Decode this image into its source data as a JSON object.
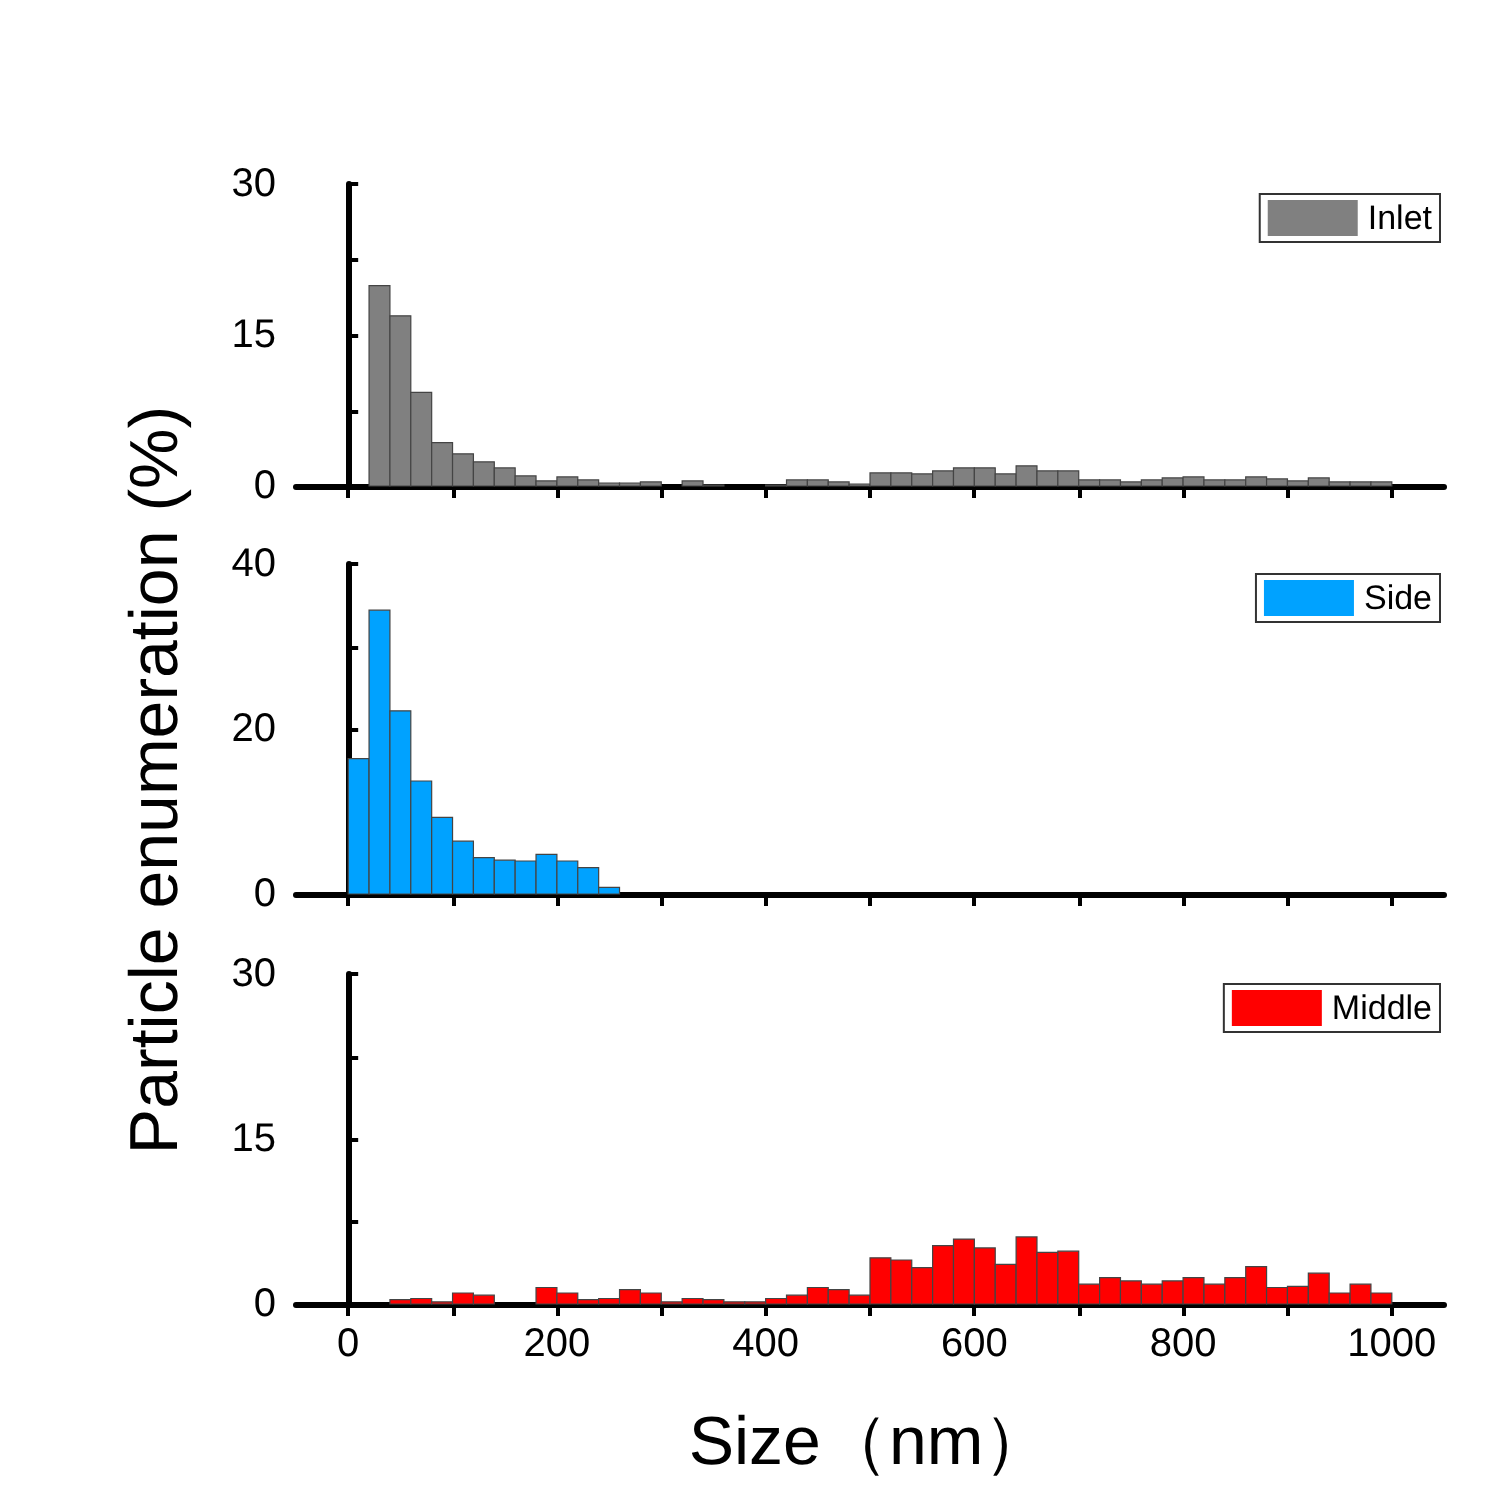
{
  "chart_data": [
    {
      "type": "histogram",
      "bins": [
        0,
        20,
        40,
        60,
        80,
        100,
        120,
        140,
        160,
        180,
        200,
        220,
        240,
        260,
        280,
        300,
        320,
        340,
        360,
        380,
        400,
        420,
        440,
        460,
        480,
        500,
        520,
        540,
        560,
        580,
        600,
        620,
        640,
        660,
        680,
        700,
        720,
        740,
        760,
        780,
        800,
        820,
        840,
        860,
        880,
        900,
        920,
        940,
        960,
        980,
        1000
      ],
      "series": [
        {
          "name": "Inlet",
          "color": "#808080",
          "values": [
            0,
            19.9,
            16.9,
            9.3,
            4.3,
            3.2,
            2.4,
            1.8,
            1.0,
            0.5,
            0.9,
            0.6,
            0.3,
            0.3,
            0.4,
            0,
            0.5,
            0.1,
            0,
            0,
            0.1,
            0.6,
            0.6,
            0.4,
            0.2,
            1.3,
            1.3,
            1.2,
            1.5,
            1.8,
            1.8,
            1.2,
            2.0,
            1.5,
            1.5,
            0.6,
            0.6,
            0.4,
            0.6,
            0.8,
            0.9,
            0.6,
            0.6,
            0.9,
            0.7,
            0.5,
            0.8,
            0.4,
            0.4,
            0.4
          ]
        }
      ],
      "xlim": [
        -50,
        1050
      ],
      "xticks": [
        0,
        {
          "value": 100,
          "label": null
        },
        {
          "value": 200,
          "label": null
        },
        {
          "value": 300,
          "label": null
        },
        {
          "value": 400,
          "label": null
        },
        {
          "value": 500,
          "label": null
        },
        {
          "value": 600,
          "label": null
        },
        {
          "value": 700,
          "label": null
        },
        {
          "value": 800,
          "label": null
        },
        {
          "value": 900,
          "label": null
        },
        {
          "value": 1000,
          "label": null
        }
      ],
      "ylim": [
        0,
        30
      ],
      "yticks": [
        0,
        {
          "value": 7.5,
          "label": null
        },
        15,
        {
          "value": 22.5,
          "label": null
        },
        30
      ],
      "tick_labels": "y",
      "legend": "top right"
    },
    {
      "type": "histogram",
      "bins": [
        0,
        20,
        40,
        60,
        80,
        100,
        120,
        140,
        160,
        180,
        200,
        220,
        240,
        260,
        280,
        300,
        320,
        340,
        360,
        380,
        400,
        420,
        440,
        460,
        480,
        500,
        520,
        540,
        560,
        580,
        600,
        620,
        640,
        660,
        680,
        700,
        720,
        740,
        760,
        780,
        800,
        820,
        840,
        860,
        880,
        900,
        920,
        940,
        960,
        980,
        1000
      ],
      "series": [
        {
          "name": "Side",
          "color": "#00a2ff",
          "values": [
            16.4,
            34.4,
            22.2,
            13.7,
            9.3,
            6.4,
            4.4,
            4.1,
            4.0,
            4.8,
            4.0,
            3.2,
            0.8,
            0,
            0,
            0,
            0,
            0,
            0,
            0,
            0,
            0,
            0,
            0,
            0,
            0,
            0,
            0,
            0,
            0,
            0,
            0,
            0,
            0,
            0,
            0,
            0,
            0,
            0,
            0,
            0,
            0,
            0,
            0,
            0,
            0,
            0,
            0,
            0,
            0
          ]
        }
      ],
      "xlim": [
        -50,
        1050
      ],
      "xticks": [
        0,
        {
          "value": 100,
          "label": null
        },
        {
          "value": 200,
          "label": null
        },
        {
          "value": 300,
          "label": null
        },
        {
          "value": 400,
          "label": null
        },
        {
          "value": 500,
          "label": null
        },
        {
          "value": 600,
          "label": null
        },
        {
          "value": 700,
          "label": null
        },
        {
          "value": 800,
          "label": null
        },
        {
          "value": 900,
          "label": null
        },
        {
          "value": 1000,
          "label": null
        }
      ],
      "ylim": [
        0,
        40
      ],
      "yticks": [
        0,
        {
          "value": 10,
          "label": null
        },
        20,
        {
          "value": 30,
          "label": null
        },
        40
      ],
      "tick_labels": "y",
      "legend": "top right",
      "ylabel": "Particle enumeration (%)"
    },
    {
      "type": "histogram",
      "bins": [
        0,
        20,
        40,
        60,
        80,
        100,
        120,
        140,
        160,
        180,
        200,
        220,
        240,
        260,
        280,
        300,
        320,
        340,
        360,
        380,
        400,
        420,
        440,
        460,
        480,
        500,
        520,
        540,
        560,
        580,
        600,
        620,
        640,
        660,
        680,
        700,
        720,
        740,
        760,
        780,
        800,
        820,
        840,
        860,
        880,
        900,
        920,
        940,
        960,
        980,
        1000
      ],
      "series": [
        {
          "name": "Middle",
          "color": "#ff0000",
          "values": [
            0,
            0,
            0.4,
            0.5,
            0.2,
            1.0,
            0.8,
            0,
            0,
            1.5,
            1.0,
            0.4,
            0.5,
            1.3,
            1.0,
            0.2,
            0.5,
            0.4,
            0.2,
            0.2,
            0.5,
            0.8,
            1.5,
            1.3,
            0.8,
            4.2,
            4.0,
            3.3,
            5.3,
            5.9,
            5.1,
            3.6,
            6.1,
            4.7,
            4.8,
            1.8,
            2.4,
            2.1,
            1.8,
            2.1,
            2.4,
            1.8,
            2.4,
            3.4,
            1.5,
            1.6,
            2.8,
            1.0,
            1.8,
            1.0
          ]
        }
      ],
      "xlim": [
        -50,
        1050
      ],
      "xticks": [
        0,
        {
          "value": 100,
          "label": null
        },
        200,
        {
          "value": 300,
          "label": null
        },
        400,
        {
          "value": 500,
          "label": null
        },
        600,
        {
          "value": 700,
          "label": null
        },
        800,
        {
          "value": 900,
          "label": null
        },
        1000
      ],
      "ylim": [
        0,
        30
      ],
      "yticks": [
        0,
        {
          "value": 7.5,
          "label": null
        },
        15,
        {
          "value": 22.5,
          "label": null
        },
        30
      ],
      "legend": "top right",
      "xlabel": "Size（nm）"
    }
  ]
}
